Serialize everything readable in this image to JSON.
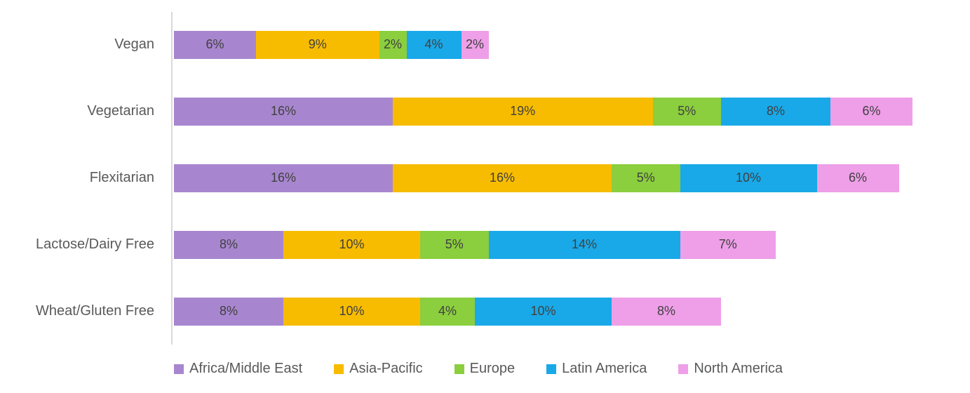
{
  "chart_data": {
    "type": "bar",
    "variant": "horizontal-stacked",
    "title": "",
    "xlabel": "",
    "ylabel": "",
    "categories": [
      "Vegan",
      "Vegetarian",
      "Flexitarian",
      "Lactose/Dairy Free",
      "Wheat/Gluten Free"
    ],
    "series": [
      {
        "name": "Africa/Middle East",
        "color": "#A886CF",
        "values": [
          6,
          16,
          16,
          8,
          8
        ]
      },
      {
        "name": "Asia-Pacific",
        "color": "#F7BC00",
        "values": [
          9,
          19,
          16,
          10,
          10
        ]
      },
      {
        "name": "Europe",
        "color": "#8BCE3E",
        "values": [
          2,
          5,
          5,
          5,
          4
        ]
      },
      {
        "name": "Latin America",
        "color": "#19A9E8",
        "values": [
          4,
          8,
          10,
          14,
          10
        ]
      },
      {
        "name": "North America",
        "color": "#EE9FE8",
        "values": [
          2,
          6,
          6,
          7,
          8
        ]
      }
    ],
    "data_labels": [
      "6%",
      "9%",
      "2%",
      "4%",
      "2%",
      "16%",
      "19%",
      "5%",
      "8%",
      "6%",
      "16%",
      "16%",
      "5%",
      "10%",
      "6%",
      "8%",
      "10%",
      "5%",
      "14%",
      "7%",
      "8%",
      "10%",
      "4%",
      "10%",
      "8%"
    ],
    "value_suffix": "%",
    "legend_position": "bottom",
    "legend_entries": [
      "Africa/Middle East",
      "Asia-Pacific",
      "Europe",
      "Latin America",
      "North America"
    ],
    "grid": false,
    "axis_line_color": "#D9D9D9",
    "category_label_color": "#595959",
    "value_label_color": "#404040",
    "xlim": [
      0,
      58
    ]
  }
}
